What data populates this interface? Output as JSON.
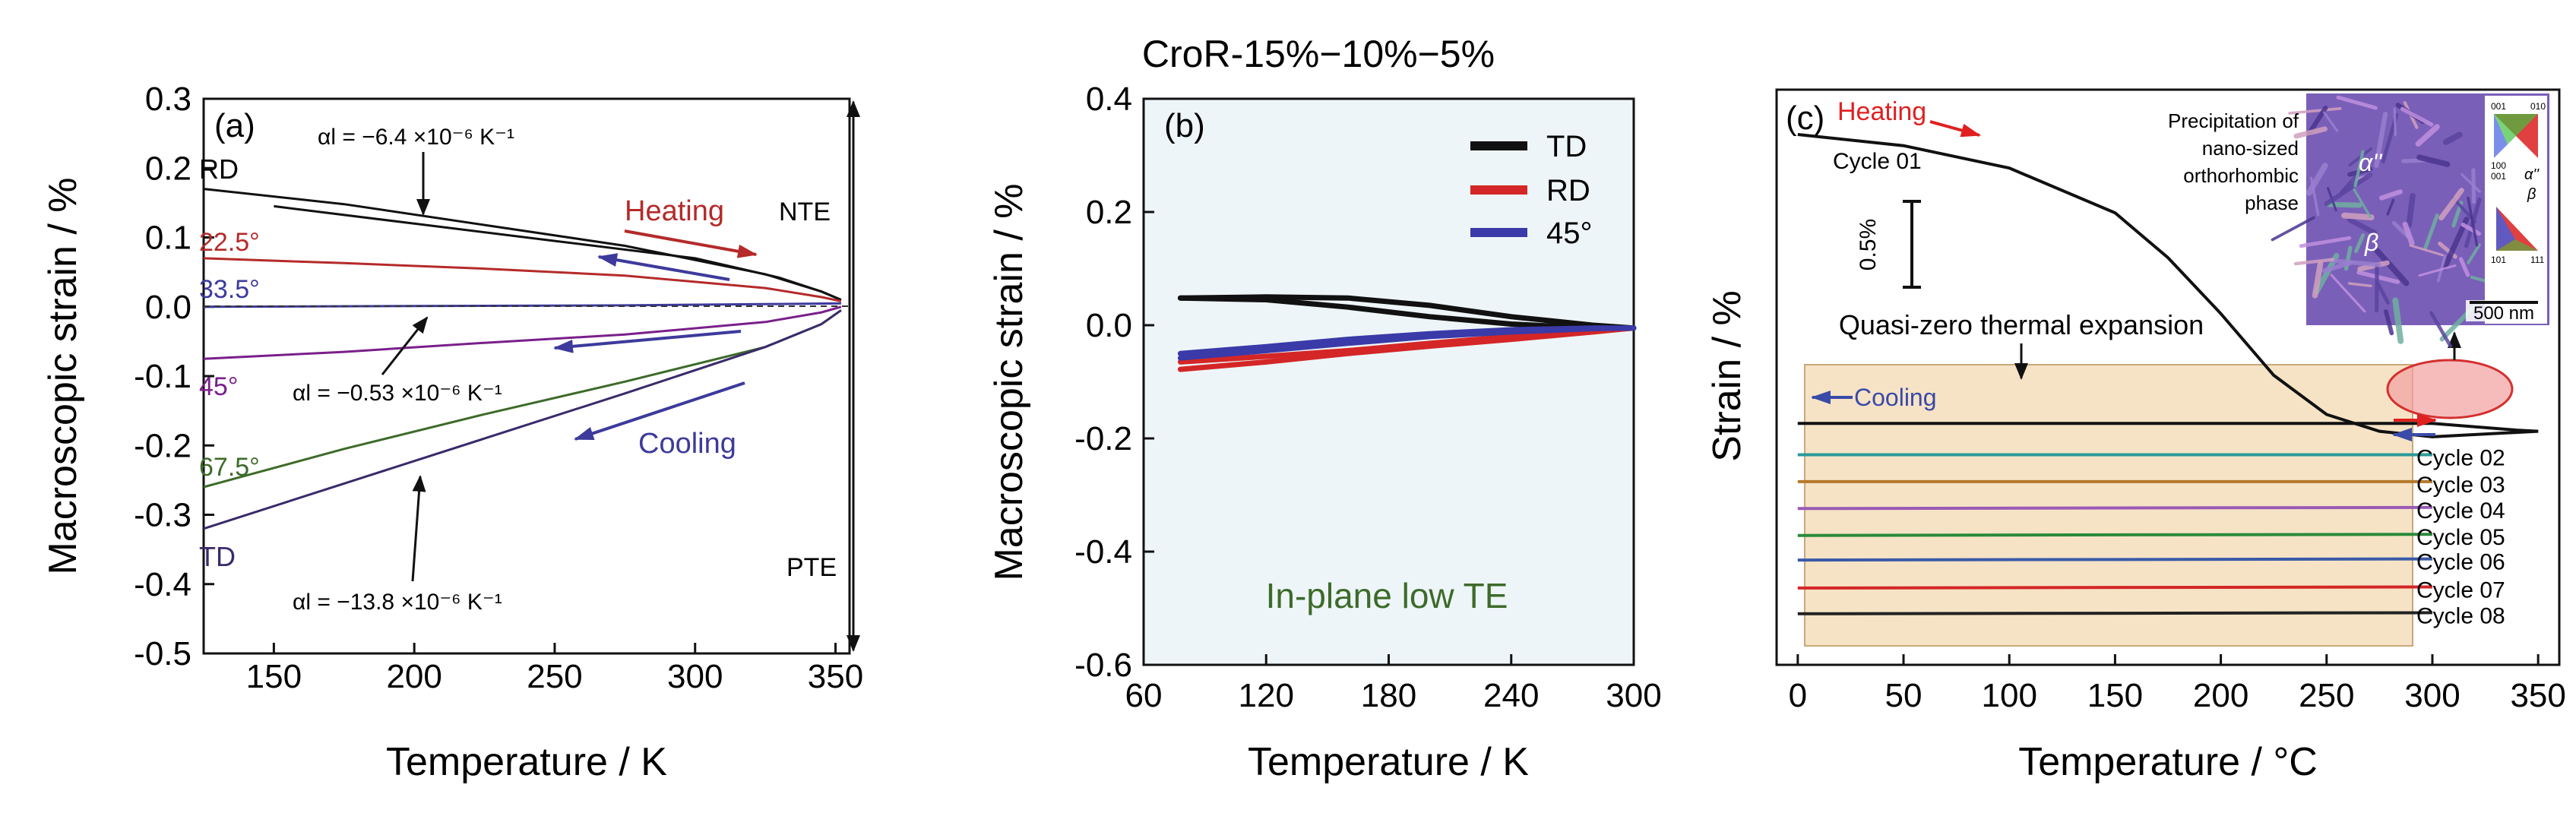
{
  "colors": {
    "black": "#111111",
    "red": "#b52a2a",
    "brightRed": "#e02020",
    "purple": "#7a1f8a",
    "blue": "#3d3a9c",
    "green": "#3d6b2a",
    "darkPurple": "#3a2a6a",
    "panelBBg": "#eef5f8",
    "panelCBox": "#f6e3c6",
    "inset": "#8a6fc0"
  },
  "chart_data": [
    {
      "type": "line",
      "panel_label": "(a)",
      "xlabel": "Temperature / K",
      "ylabel": "Macroscopic strain / %",
      "xlim": [
        125,
        355
      ],
      "ylim": [
        -0.5,
        0.3
      ],
      "xticks": [
        150,
        200,
        250,
        300,
        350
      ],
      "yticks": [
        -0.5,
        -0.4,
        -0.3,
        -0.2,
        -0.1,
        0.0,
        0.1,
        0.2,
        0.3
      ],
      "ytick_labels": [
        "-0.5",
        "-0.4",
        "-0.3",
        "-0.2",
        "-0.1",
        "0.0",
        "0.1",
        "0.2",
        "0.3"
      ],
      "series": [
        {
          "name": "RD",
          "color": "#111111",
          "x": [
            125,
            175,
            225,
            275,
            325,
            345,
            352
          ],
          "y": [
            0.17,
            0.148,
            0.118,
            0.088,
            0.047,
            0.022,
            0.01
          ]
        },
        {
          "name": "RD",
          "color": "#111111",
          "x": [
            150,
            200,
            250,
            300,
            330,
            345,
            352
          ],
          "y": [
            0.145,
            0.12,
            0.095,
            0.07,
            0.042,
            0.022,
            0.01
          ]
        },
        {
          "name": "22.5°",
          "color": "#b52a2a",
          "x": [
            125,
            175,
            225,
            275,
            325,
            345,
            352
          ],
          "y": [
            0.07,
            0.063,
            0.055,
            0.045,
            0.027,
            0.014,
            0.008
          ]
        },
        {
          "name": "33.5°",
          "color": "#3d3a9c",
          "x": [
            125,
            200,
            275,
            330,
            352
          ],
          "y": [
            0.0,
            0.001,
            0.002,
            0.004,
            0.005
          ]
        },
        {
          "name": "45°",
          "color": "#7a1f8a",
          "x": [
            125,
            175,
            225,
            275,
            325,
            345,
            352
          ],
          "y": [
            -0.075,
            -0.065,
            -0.052,
            -0.04,
            -0.022,
            -0.008,
            0.0
          ]
        },
        {
          "name": "67.5°",
          "color": "#3d6b2a",
          "x": [
            125,
            175,
            225,
            275,
            325,
            345,
            352
          ],
          "y": [
            -0.26,
            -0.205,
            -0.155,
            -0.108,
            -0.058,
            -0.025,
            -0.005
          ]
        },
        {
          "name": "TD",
          "color": "#3a2a6a",
          "x": [
            125,
            175,
            225,
            275,
            325,
            345,
            352
          ],
          "y": [
            -0.32,
            -0.255,
            -0.19,
            -0.125,
            -0.058,
            -0.025,
            -0.005
          ]
        }
      ],
      "labels": {
        "rd": "RD",
        "a225": "22.5°",
        "a335": "33.5°",
        "a45": "45°",
        "a675": "67.5°",
        "td": "TD",
        "alpha_top": "αl = −6.4 ×10⁻⁶ K⁻¹",
        "alpha_mid": "αl = −0.53 ×10⁻⁶ K⁻¹",
        "alpha_bot": "αl = −13.8 ×10⁻⁶ K⁻¹",
        "heating": "Heating",
        "cooling": "Cooling",
        "nte": "NTE",
        "pte": "PTE"
      }
    },
    {
      "type": "line",
      "panel_label": "(b)",
      "title": "CroR-15%−10%−5%",
      "xlabel": "Temperature / K",
      "ylabel": "Macroscopic strain / %",
      "xlim": [
        60,
        300
      ],
      "ylim": [
        -0.6,
        0.4
      ],
      "xticks": [
        60,
        120,
        180,
        240,
        300
      ],
      "yticks": [
        -0.6,
        -0.4,
        -0.2,
        0.0,
        0.2,
        0.4
      ],
      "ytick_labels": [
        "-0.6",
        "-0.4",
        "-0.2",
        "0.0",
        "0.2",
        "0.4"
      ],
      "legend": [
        "TD",
        "RD",
        "45°"
      ],
      "annotation": "In-plane low TE",
      "series": [
        {
          "name": "TD",
          "color": "#111111",
          "x": [
            78,
            120,
            160,
            200,
            240,
            280,
            300
          ],
          "y": [
            0.048,
            0.05,
            0.048,
            0.035,
            0.015,
            0.0,
            -0.005
          ]
        },
        {
          "name": "TD",
          "color": "#111111",
          "x": [
            78,
            120,
            160,
            200,
            240,
            280,
            300
          ],
          "y": [
            0.048,
            0.045,
            0.032,
            0.015,
            0.002,
            -0.005,
            -0.005
          ]
        },
        {
          "name": "RD",
          "color": "#d42626",
          "x": [
            78,
            120,
            160,
            200,
            240,
            280,
            300
          ],
          "y": [
            -0.078,
            -0.065,
            -0.05,
            -0.037,
            -0.025,
            -0.012,
            -0.005
          ]
        },
        {
          "name": "RD",
          "color": "#d42626",
          "x": [
            78,
            120,
            160,
            200,
            240,
            280,
            300
          ],
          "y": [
            -0.065,
            -0.055,
            -0.045,
            -0.032,
            -0.02,
            -0.01,
            -0.005
          ]
        },
        {
          "name": "45°",
          "color": "#3a3aa8",
          "x": [
            78,
            120,
            160,
            200,
            240,
            280,
            300
          ],
          "y": [
            -0.058,
            -0.045,
            -0.032,
            -0.02,
            -0.012,
            -0.006,
            -0.005
          ]
        },
        {
          "name": "45°",
          "color": "#3a3aa8",
          "x": [
            78,
            120,
            160,
            200,
            240,
            280,
            300
          ],
          "y": [
            -0.05,
            -0.038,
            -0.025,
            -0.015,
            -0.008,
            -0.005,
            -0.005
          ]
        }
      ]
    },
    {
      "type": "line",
      "panel_label": "(c)",
      "xlabel": "Temperature / °C",
      "ylabel": "Strain / %",
      "xlim": [
        -10,
        360
      ],
      "xticks": [
        0,
        50,
        100,
        150,
        200,
        250,
        300,
        350
      ],
      "scale_bar": "0.5%",
      "inset_text": [
        "Precipitation of",
        "nano-sized",
        "orthorhombic",
        "phase"
      ],
      "inset_scale": "500 nm",
      "inset_phases": [
        "α''",
        "β"
      ],
      "ipf_top": [
        "001",
        "010",
        "100",
        "001"
      ],
      "ipf_bottom": [
        "101",
        "111"
      ],
      "ipf_labels": [
        "α''",
        "β"
      ],
      "annotation": "Quasi-zero thermal expansion",
      "heating": "Heating",
      "cooling": "Cooling",
      "cycles": [
        "Cycle 01",
        "Cycle 02",
        "Cycle 03",
        "Cycle 04",
        "Cycle 05",
        "Cycle 06",
        "Cycle 07",
        "Cycle 08"
      ],
      "series": [
        {
          "name": "Cycle 01",
          "color": "#111111",
          "x": [
            0,
            50,
            100,
            150,
            175,
            200,
            225,
            250,
            275,
            300,
            350
          ],
          "y": [
            3.6,
            3.5,
            3.3,
            2.9,
            2.5,
            2.0,
            1.45,
            1.1,
            0.95,
            0.9,
            0.95
          ]
        },
        {
          "name": "Cycle 01 cooling",
          "color": "#111111",
          "x": [
            0,
            100,
            200,
            300,
            340,
            350
          ],
          "y": [
            1.02,
            1.02,
            1.02,
            1.02,
            0.96,
            0.95
          ]
        },
        {
          "name": "Cycle 02",
          "color": "#2a9a9a",
          "x": [
            0,
            300
          ],
          "y": [
            0.74,
            0.74
          ]
        },
        {
          "name": "Cycle 03",
          "color": "#b5782a",
          "x": [
            0,
            300
          ],
          "y": [
            0.5,
            0.5
          ]
        },
        {
          "name": "Cycle 04",
          "color": "#9a5ab5",
          "x": [
            0,
            300
          ],
          "y": [
            0.26,
            0.27
          ]
        },
        {
          "name": "Cycle 05",
          "color": "#2a8a3a",
          "x": [
            0,
            300
          ],
          "y": [
            0.02,
            0.03
          ]
        },
        {
          "name": "Cycle 06",
          "color": "#3a5aa8",
          "x": [
            0,
            300
          ],
          "y": [
            -0.2,
            -0.19
          ]
        },
        {
          "name": "Cycle 07",
          "color": "#d42626",
          "x": [
            0,
            300
          ],
          "y": [
            -0.45,
            -0.44
          ]
        },
        {
          "name": "Cycle 08",
          "color": "#222222",
          "x": [
            0,
            300
          ],
          "y": [
            -0.68,
            -0.67
          ]
        }
      ]
    }
  ]
}
